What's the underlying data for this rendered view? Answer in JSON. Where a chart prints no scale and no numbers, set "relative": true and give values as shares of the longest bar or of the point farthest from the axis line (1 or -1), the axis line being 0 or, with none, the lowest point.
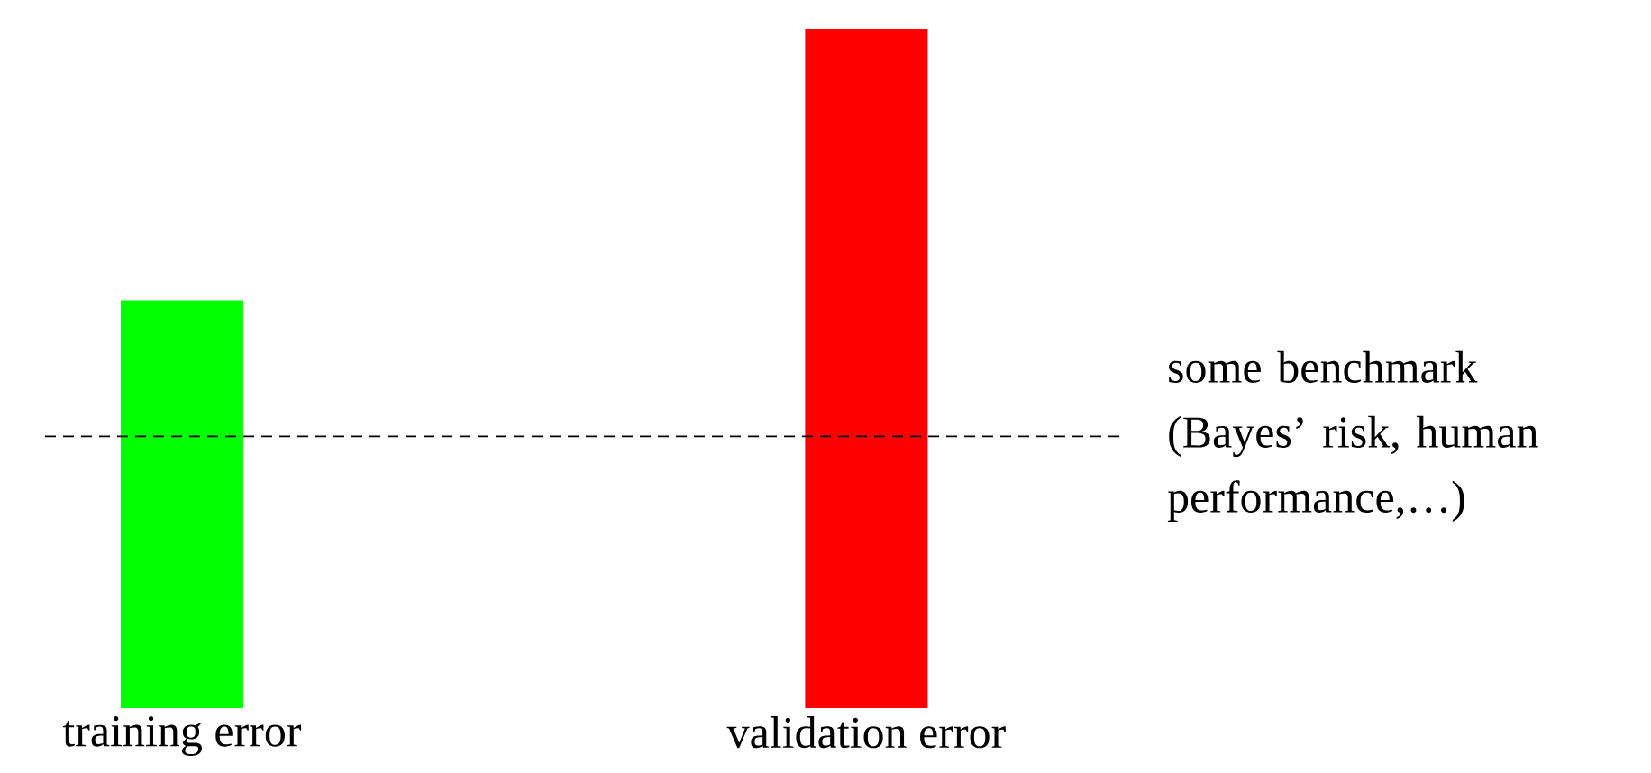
{
  "chart_data": {
    "type": "bar",
    "relative": true,
    "categories": [
      "training error",
      "validation error"
    ],
    "values": [
      0.6,
      1
    ],
    "colors": [
      "#00ff00",
      "#ff0000"
    ],
    "ref_lines": [
      {
        "axis": "y",
        "value": 0.4,
        "label": "some benchmark (Bayes’ risk, human performance,…)",
        "color": "#000000",
        "line_style": "dashed"
      }
    ]
  }
}
